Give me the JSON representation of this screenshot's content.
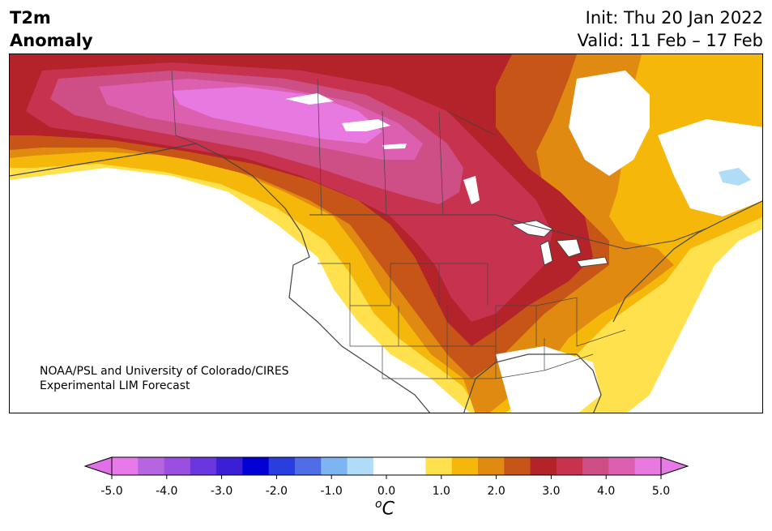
{
  "header": {
    "title_line1": "T2m",
    "title_line2": "Anomaly",
    "init": "Init: Thu 20 Jan 2022",
    "valid": "Valid: 11 Feb – 17 Feb"
  },
  "credit": {
    "line1": "NOAA/PSL and University of Colorado/CIRES",
    "line2": "Experimental LIM Forecast"
  },
  "colorbar": {
    "unit_base": "C",
    "unit_sup": "o",
    "tick_labels": [
      "-5.0",
      "-4.0",
      "-3.0",
      "-2.0",
      "-1.0",
      "0.0",
      "1.0",
      "2.0",
      "3.0",
      "4.0",
      "5.0"
    ],
    "colors": [
      "#e879e8",
      "#b565e0",
      "#9a4fe0",
      "#6a36e0",
      "#3a1fd6",
      "#0000d6",
      "#2a3ee0",
      "#4e6de6",
      "#7db4f2",
      "#b0dcf7",
      "#ffffff",
      "#ffffff",
      "#ffe14d",
      "#f5b70a",
      "#e08a12",
      "#c85518",
      "#b4222a",
      "#c7334f",
      "#cd4f85",
      "#dc5fb0",
      "#e879e0"
    ],
    "under_color": "#e070e8",
    "over_color": "#e879e8"
  },
  "map": {
    "land_stroke": "#444444"
  }
}
